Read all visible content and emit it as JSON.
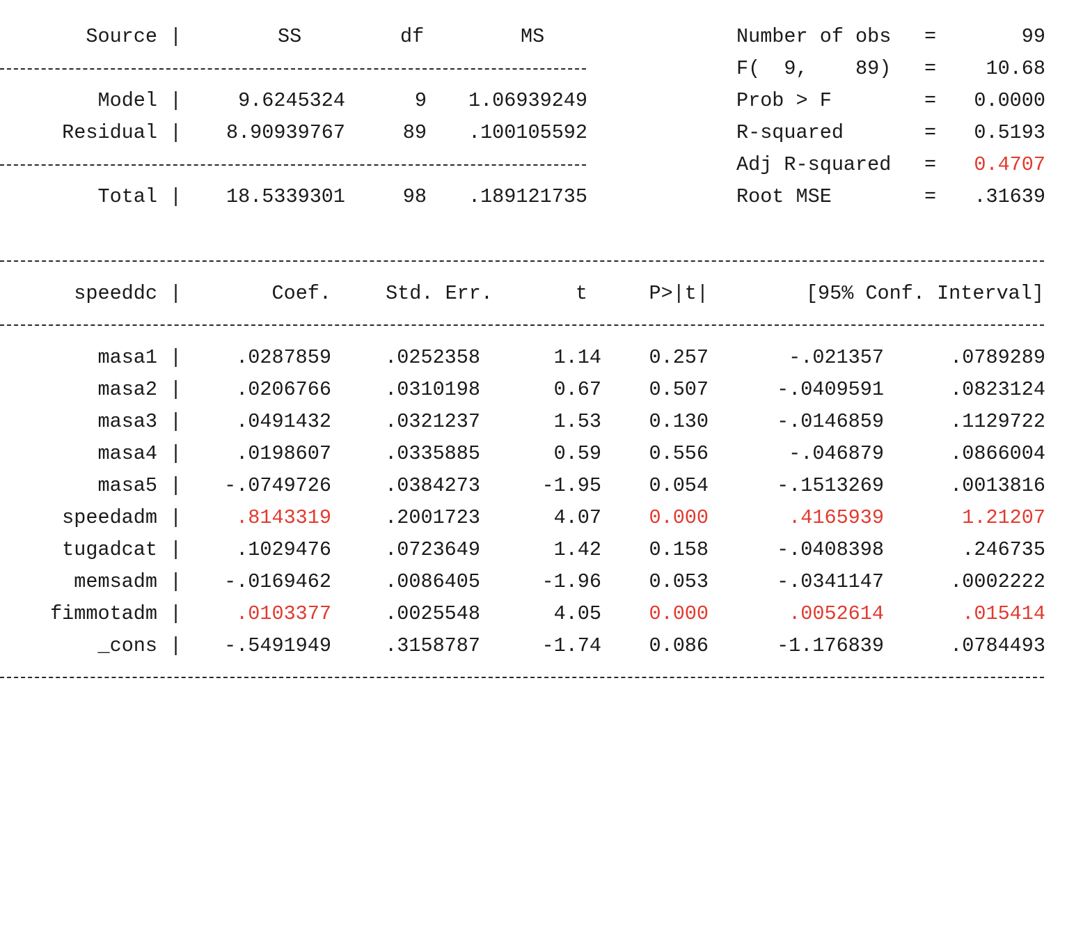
{
  "anova": {
    "headers": {
      "source": "Source",
      "ss": "SS",
      "df": "df",
      "ms": "MS"
    },
    "rows": [
      {
        "source": "Model",
        "ss": "9.6245324",
        "df": "9",
        "ms": "1.06939249"
      },
      {
        "source": "Residual",
        "ss": "8.90939767",
        "df": "89",
        "ms": ".100105592"
      },
      {
        "source": "Total",
        "ss": "18.5339301",
        "df": "98",
        "ms": ".189121735"
      }
    ]
  },
  "stats": [
    {
      "label": "Number of obs",
      "value": "99",
      "highlight": false
    },
    {
      "label": "F(  9,    89)",
      "value": "10.68",
      "highlight": false
    },
    {
      "label": "Prob > F",
      "value": "0.0000",
      "highlight": false
    },
    {
      "label": "R-squared",
      "value": "0.5193",
      "highlight": false
    },
    {
      "label": "Adj R-squared",
      "value": "0.4707",
      "highlight": true
    },
    {
      "label": "Root MSE",
      "value": ".31639",
      "highlight": false
    }
  ],
  "coef_table": {
    "headers": {
      "var": "speeddc",
      "coef": "Coef.",
      "se": "Std. Err.",
      "t": "t",
      "p": "P>|t|",
      "ci": "[95% Conf. Interval]"
    },
    "rows": [
      {
        "var": "masa1",
        "coef": ".0287859",
        "se": ".0252358",
        "t": "1.14",
        "p": "0.257",
        "lo": "-.021357",
        "hi": ".0789289",
        "highlight": false
      },
      {
        "var": "masa2",
        "coef": ".0206766",
        "se": ".0310198",
        "t": "0.67",
        "p": "0.507",
        "lo": "-.0409591",
        "hi": ".0823124",
        "highlight": false
      },
      {
        "var": "masa3",
        "coef": ".0491432",
        "se": ".0321237",
        "t": "1.53",
        "p": "0.130",
        "lo": "-.0146859",
        "hi": ".1129722",
        "highlight": false
      },
      {
        "var": "masa4",
        "coef": ".0198607",
        "se": ".0335885",
        "t": "0.59",
        "p": "0.556",
        "lo": "-.046879",
        "hi": ".0866004",
        "highlight": false
      },
      {
        "var": "masa5",
        "coef": "-.0749726",
        "se": ".0384273",
        "t": "-1.95",
        "p": "0.054",
        "lo": "-.1513269",
        "hi": ".0013816",
        "highlight": false
      },
      {
        "var": "speedadm",
        "coef": ".8143319",
        "se": ".2001723",
        "t": "4.07",
        "p": "0.000",
        "lo": ".4165939",
        "hi": "1.21207",
        "highlight": true
      },
      {
        "var": "tugadcat",
        "coef": ".1029476",
        "se": ".0723649",
        "t": "1.42",
        "p": "0.158",
        "lo": "-.0408398",
        "hi": ".246735",
        "highlight": false
      },
      {
        "var": "memsadm",
        "coef": "-.0169462",
        "se": ".0086405",
        "t": "-1.96",
        "p": "0.053",
        "lo": "-.0341147",
        "hi": ".0002222",
        "highlight": false
      },
      {
        "var": "fimmotadm",
        "coef": ".0103377",
        "se": ".0025548",
        "t": "4.05",
        "p": "0.000",
        "lo": ".0052614",
        "hi": ".015414",
        "highlight": true
      },
      {
        "var": "_cons",
        "coef": "-.5491949",
        "se": ".3158787",
        "t": "-1.74",
        "p": "0.086",
        "lo": "-1.176839",
        "hi": ".0784493",
        "highlight": false
      }
    ]
  },
  "colors": {
    "highlight": "#e23a2e",
    "text": "#1a1a1a"
  }
}
